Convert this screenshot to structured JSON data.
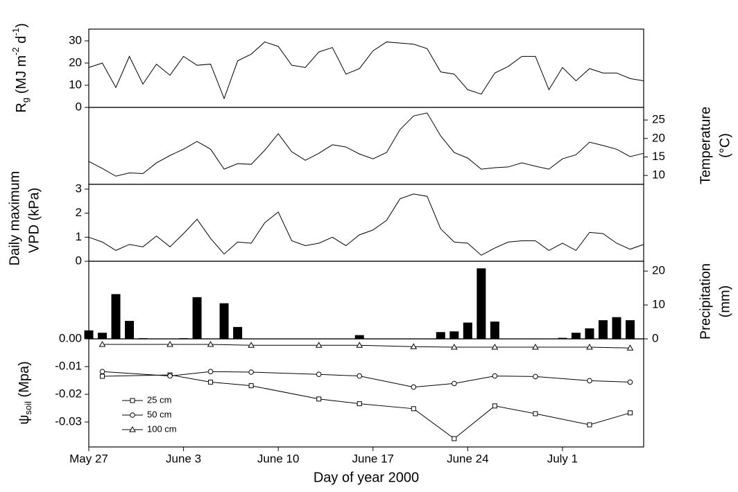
{
  "chart_data": [
    {
      "type": "line",
      "ylabel": [
        "R",
        "g",
        " (MJ m",
        "-2",
        " d",
        "-1",
        ")"
      ],
      "y_axis_side": "left",
      "color": "#000000",
      "x": [
        148,
        149,
        150,
        151,
        152,
        153,
        154,
        155,
        156,
        157,
        158,
        159,
        160,
        161,
        162,
        163,
        164,
        165,
        166,
        167,
        168,
        169,
        170,
        171,
        172,
        173,
        174,
        175,
        176,
        177,
        178,
        179,
        180,
        181,
        182,
        183,
        184,
        185,
        186,
        187,
        188,
        189
      ],
      "values": [
        18,
        20,
        9,
        23,
        10.5,
        19.5,
        14.5,
        23,
        19,
        19.5,
        4,
        21,
        24,
        29.5,
        27.5,
        19,
        18,
        25,
        27,
        15,
        17.5,
        25.5,
        29.5,
        29,
        28.5,
        26.5,
        16,
        15,
        8,
        6,
        15.5,
        18.5,
        23,
        23,
        8,
        18,
        12,
        17.5,
        15.5,
        15.5,
        13,
        12
      ],
      "xlim": [
        148,
        189
      ],
      "ylim": [
        0,
        35.3
      ],
      "yticks": [
        0,
        10,
        20,
        30
      ]
    },
    {
      "type": "line",
      "ylabel": [
        "Temperature",
        "(°C)"
      ],
      "y_axis_side": "right",
      "color": "#000000",
      "x": [
        148,
        149,
        150,
        151,
        152,
        153,
        154,
        155,
        156,
        157,
        158,
        159,
        160,
        161,
        162,
        163,
        164,
        165,
        166,
        167,
        168,
        169,
        170,
        171,
        172,
        173,
        174,
        175,
        176,
        177,
        178,
        179,
        180,
        181,
        182,
        183,
        184,
        185,
        186,
        187,
        188,
        189
      ],
      "values": [
        13.8,
        11.9,
        9.8,
        10.7,
        10.5,
        13.4,
        15.4,
        17.1,
        19.2,
        17.1,
        11.7,
        13.2,
        13,
        16.8,
        21.3,
        16.4,
        14.1,
        16,
        18.3,
        17.7,
        15.8,
        14.5,
        16.2,
        22.4,
        26.1,
        26.9,
        20.7,
        16.2,
        14.7,
        11.7,
        12.1,
        12.3,
        13.4,
        12.5,
        11.7,
        14.5,
        15.6,
        19,
        18.1,
        17.1,
        15.1,
        16
      ],
      "xlim": [
        148,
        189
      ],
      "ylim": [
        7.6,
        28.4
      ],
      "yticks": [
        10,
        15,
        20,
        25
      ]
    },
    {
      "type": "line",
      "ylabel": [
        "Daily maximum",
        "VPD (kPa)"
      ],
      "y_axis_side": "left",
      "color": "#000000",
      "x": [
        148,
        149,
        150,
        151,
        152,
        153,
        154,
        155,
        156,
        157,
        158,
        159,
        160,
        161,
        162,
        163,
        164,
        165,
        166,
        167,
        168,
        169,
        170,
        171,
        172,
        173,
        174,
        175,
        176,
        177,
        178,
        179,
        180,
        181,
        182,
        183,
        184,
        185,
        186,
        187,
        188,
        189
      ],
      "values": [
        1.0,
        0.8,
        0.45,
        0.7,
        0.6,
        1.05,
        0.6,
        1.15,
        1.75,
        0.95,
        0.3,
        0.8,
        0.75,
        1.6,
        2.05,
        0.85,
        0.65,
        0.75,
        1.0,
        0.65,
        1.1,
        1.3,
        1.7,
        2.6,
        2.8,
        2.7,
        1.35,
        0.8,
        0.75,
        0.25,
        0.55,
        0.8,
        0.85,
        0.85,
        0.45,
        0.75,
        0.45,
        1.2,
        1.15,
        0.75,
        0.5,
        0.7
      ],
      "xlim": [
        148,
        189
      ],
      "ylim": [
        0,
        3.2
      ],
      "yticks": [
        0,
        1,
        2,
        3
      ]
    },
    {
      "type": "bar",
      "ylabel": [
        "Precipitation",
        "(mm)"
      ],
      "y_axis_side": "right",
      "color": "#000000",
      "x": [
        148,
        149,
        150,
        151,
        152,
        155,
        156,
        158,
        159,
        168,
        174,
        175,
        176,
        177,
        178,
        183,
        184,
        185,
        186,
        187,
        188
      ],
      "values": [
        2.5,
        1.8,
        13.2,
        5.3,
        0.2,
        0.2,
        12.3,
        10.5,
        3.5,
        1.1,
        2,
        2.2,
        4.8,
        20.8,
        5.1,
        0.3,
        1.8,
        3.1,
        5.5,
        6.4,
        5.5
      ],
      "xlim": [
        148,
        189
      ],
      "ylim": [
        0,
        22.9
      ],
      "yticks": [
        0,
        10,
        20
      ]
    },
    {
      "type": "marker-line",
      "ylabel": [
        "ψ",
        "soil",
        " (Mpa)"
      ],
      "y_axis_side": "left",
      "xlabel": "Day of year 2000",
      "x": [
        149,
        154,
        157,
        160,
        165,
        168,
        172,
        175,
        178,
        181,
        185,
        188
      ],
      "series": [
        {
          "name": "25 cm",
          "marker": "square",
          "color": "#000000",
          "values": [
            -0.0135,
            -0.013,
            -0.0156,
            -0.0169,
            -0.0217,
            -0.0234,
            -0.0252,
            -0.036,
            -0.0242,
            -0.027,
            -0.031,
            -0.0267
          ]
        },
        {
          "name": "50 cm",
          "marker": "circle",
          "color": "#000000",
          "values": [
            -0.0118,
            -0.0134,
            -0.0118,
            -0.012,
            -0.0128,
            -0.0134,
            -0.0174,
            -0.0161,
            -0.0134,
            -0.0136,
            -0.0151,
            -0.0156
          ]
        },
        {
          "name": "100 cm",
          "marker": "triangle",
          "color": "#000000",
          "values": [
            -0.002,
            -0.002,
            -0.002,
            -0.0023,
            -0.0023,
            -0.0023,
            -0.0028,
            -0.003,
            -0.003,
            -0.003,
            -0.003,
            -0.0033
          ]
        }
      ],
      "xlim": [
        148,
        189
      ],
      "ylim": [
        -0.039,
        0
      ],
      "yticks": [
        {
          "value": 0,
          "label": "0.00"
        },
        -0.01,
        -0.02,
        -0.03
      ],
      "xticks": [
        {
          "value": 148,
          "label": "May 27"
        },
        {
          "value": 155,
          "label": "June 3"
        },
        {
          "value": 162,
          "label": "June 10"
        },
        {
          "value": 169,
          "label": "June 17"
        },
        {
          "value": 176,
          "label": "June 24"
        },
        {
          "value": 183,
          "label": "July 1"
        }
      ]
    }
  ]
}
